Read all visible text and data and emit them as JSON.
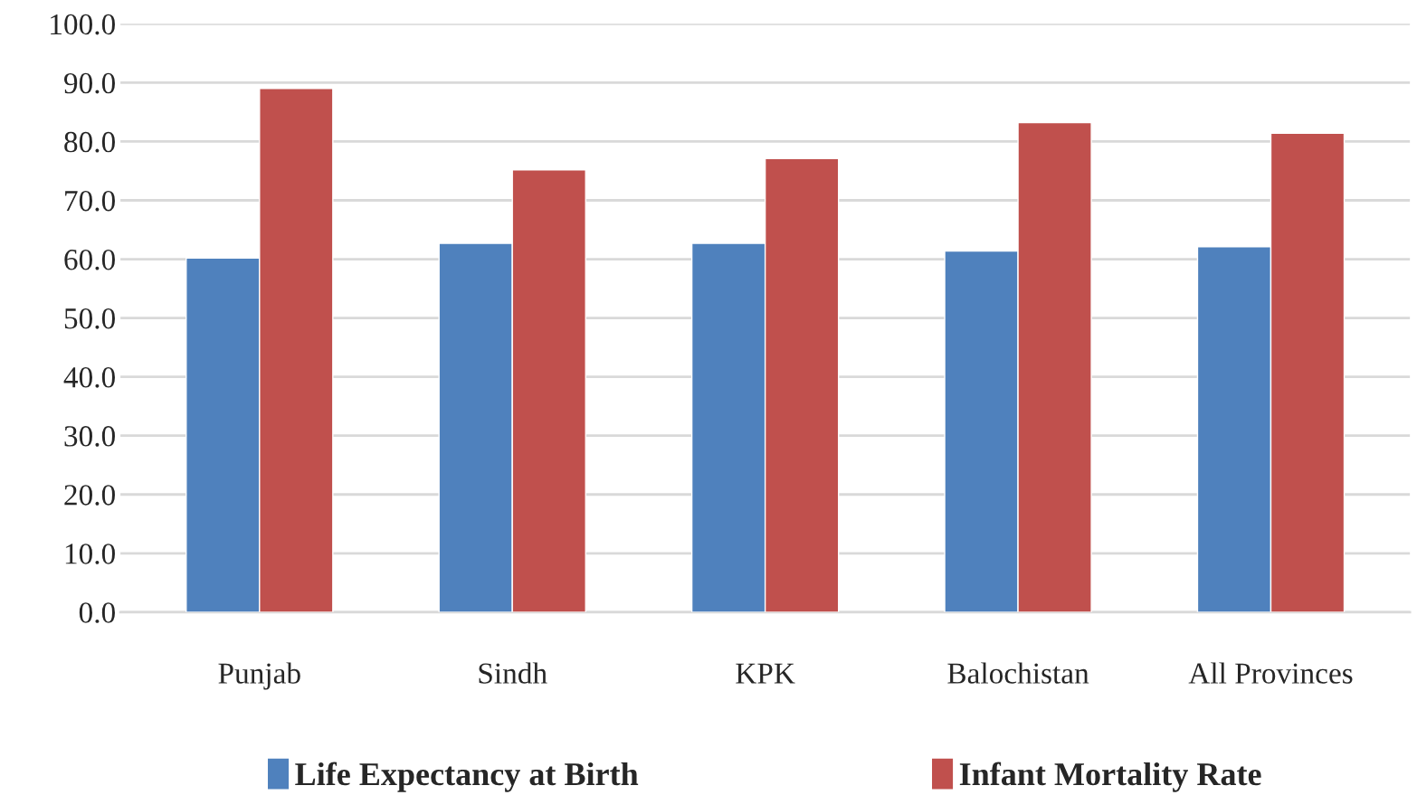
{
  "chart_data": {
    "type": "bar",
    "categories": [
      "Punjab",
      "Sindh",
      "KPK",
      "Balochistan",
      "All Provinces"
    ],
    "series": [
      {
        "name": "Life Expectancy at Birth",
        "color": "#4f81bd",
        "values": [
          60.2,
          62.7,
          62.7,
          61.4,
          62.1
        ]
      },
      {
        "name": "Infant Mortality Rate",
        "color": "#c0504d",
        "values": [
          89.0,
          75.2,
          77.1,
          83.2,
          81.4
        ]
      }
    ],
    "ylim": [
      0,
      100
    ],
    "yticks": [
      {
        "value": 0,
        "label": "0.0"
      },
      {
        "value": 10,
        "label": "10.0"
      },
      {
        "value": 20,
        "label": "20.0"
      },
      {
        "value": 30,
        "label": "30.0"
      },
      {
        "value": 40,
        "label": "40.0"
      },
      {
        "value": 50,
        "label": "50.0"
      },
      {
        "value": 60,
        "label": "60.0"
      },
      {
        "value": 70,
        "label": "70.0"
      },
      {
        "value": 80,
        "label": "80.0"
      },
      {
        "value": 90,
        "label": "90.0"
      },
      {
        "value": 100,
        "label": "100.0"
      }
    ],
    "grid": "y",
    "legend": "bottom"
  }
}
